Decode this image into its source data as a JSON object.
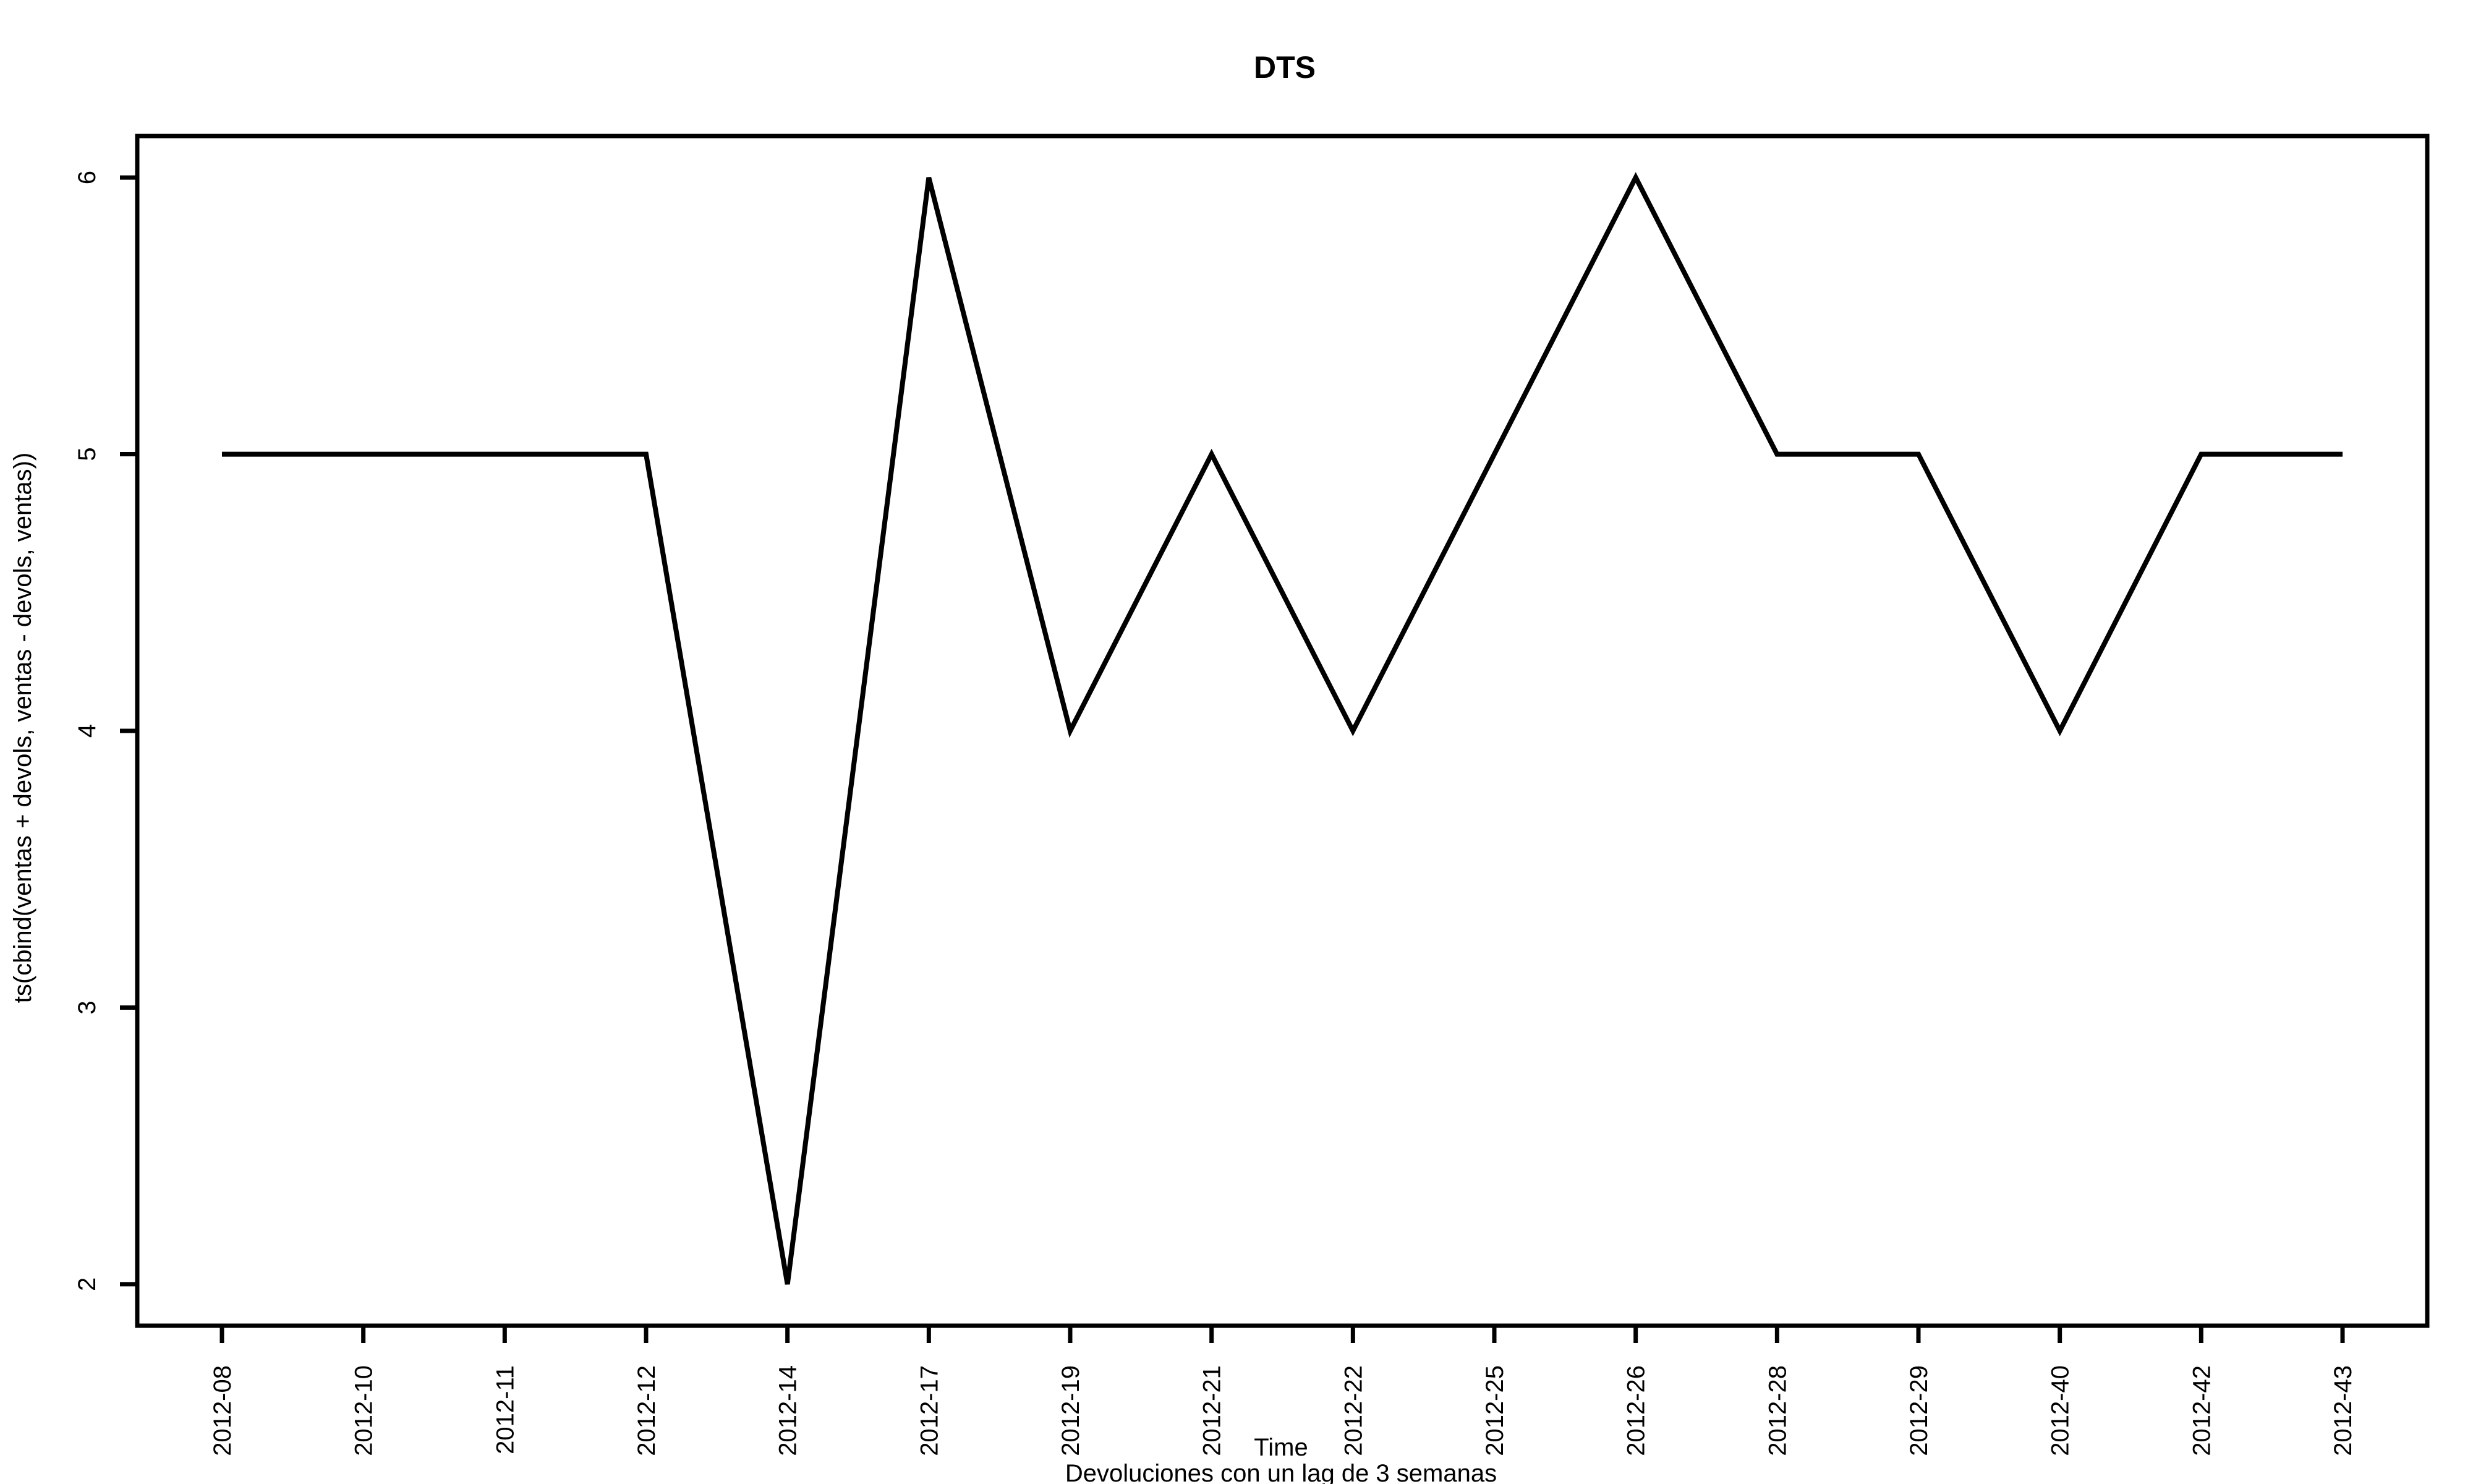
{
  "chart_data": {
    "type": "line",
    "title": "DTS",
    "xlabel": "Time",
    "sub": "Devoluciones con un lag de 3 semanas",
    "ylabel": "ts(cbind(ventas + devols, ventas - devols, ventas))",
    "ylim": [
      1.85,
      6.15
    ],
    "yticks": [
      2,
      3,
      4,
      5,
      6
    ],
    "grid": false,
    "legend": "none",
    "line_color": "#000000",
    "categories": [
      "2012-08",
      "2012-10",
      "2012-11",
      "2012-12",
      "2012-14",
      "2012-17",
      "2012-19",
      "2012-21",
      "2012-22",
      "2012-25",
      "2012-26",
      "2012-28",
      "2012-29",
      "2012-40",
      "2012-42",
      "2012-43"
    ],
    "series": [
      {
        "values": [
          5,
          5,
          5,
          5,
          2,
          6,
          4,
          5,
          4,
          5,
          6,
          5,
          5,
          4,
          5,
          5
        ]
      }
    ]
  }
}
